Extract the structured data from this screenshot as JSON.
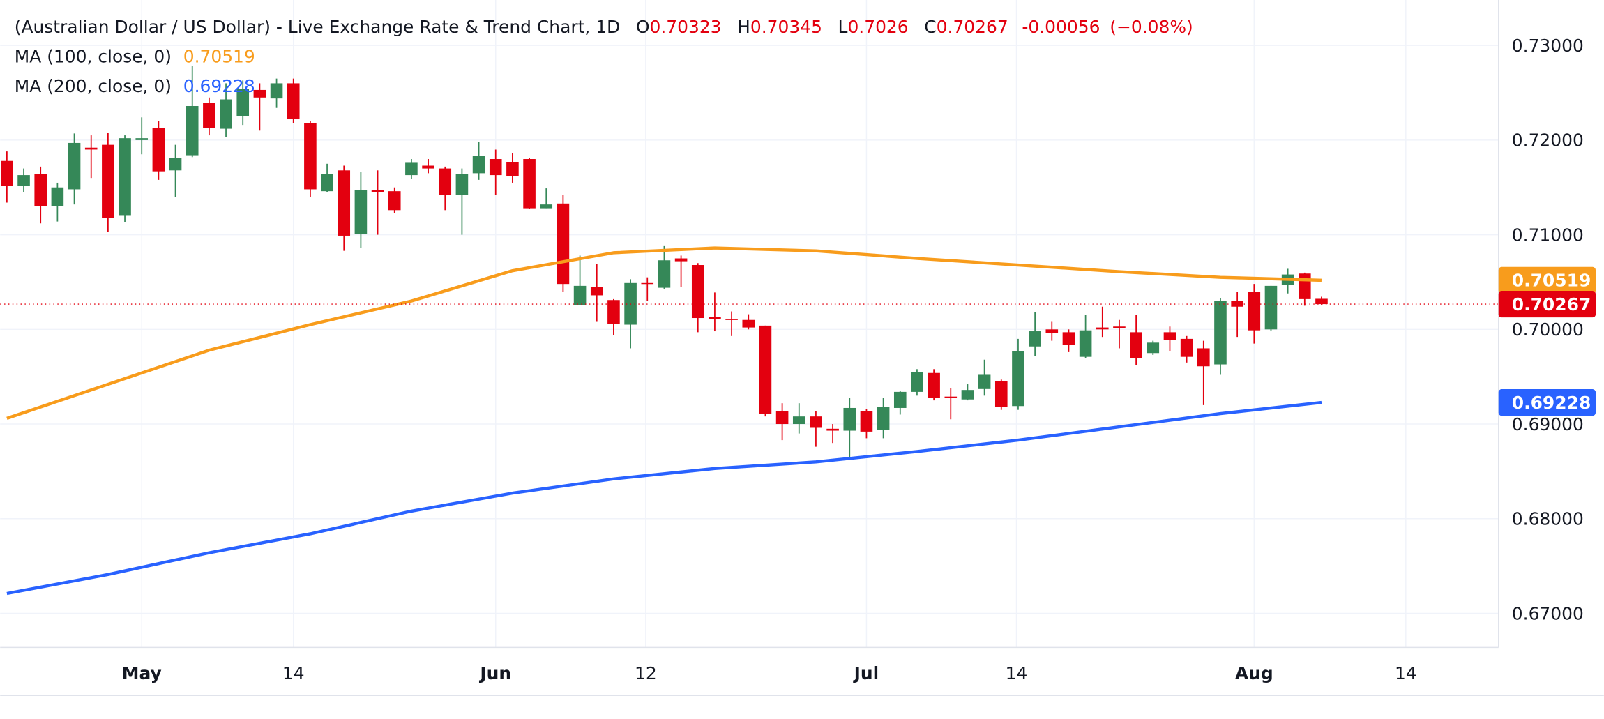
{
  "chart_data": {
    "type": "candlestick",
    "title": "(Australian Dollar / US Dollar) - Live Exchange Rate & Trend Chart, 1D",
    "ohlc_labels": [
      "O",
      "H",
      "L",
      "C"
    ],
    "change": -0.00056,
    "change_percent_label": "(−0.08%)",
    "up_color": "#358858",
    "down_color": "#e3000f",
    "open": [
      0.7178,
      0.7152,
      0.7164,
      0.713,
      0.7148,
      0.7192,
      0.7195,
      0.712,
      0.72,
      0.7213,
      0.7168,
      0.7184,
      0.7239,
      0.7212,
      0.7225,
      0.7253,
      0.7244,
      0.726,
      0.7218,
      0.7146,
      0.7168,
      0.7101,
      0.7147,
      0.7146,
      0.7163,
      0.7173,
      0.717,
      0.7142,
      0.7165,
      0.718,
      0.7177,
      0.718,
      0.7128,
      0.7133,
      0.7026,
      0.7045,
      0.7031,
      0.7005,
      0.7049,
      0.7044,
      0.7075,
      0.7068,
      0.7013,
      0.7011,
      0.701,
      0.7004,
      0.6914,
      0.69,
      0.6908,
      0.6895,
      0.6893,
      0.6914,
      0.6894,
      0.6917,
      0.6934,
      0.6954,
      0.6929,
      0.6926,
      0.6937,
      0.6945,
      0.6919,
      0.6982,
      0.7,
      0.6997,
      0.6971,
      0.7002,
      0.7003,
      0.6997,
      0.6975,
      0.6997,
      0.699,
      0.698,
      0.6963,
      0.703,
      0.704,
      0.7,
      0.7047,
      0.7059,
      0.70323
    ],
    "high": [
      0.7188,
      0.717,
      0.7172,
      0.7155,
      0.7207,
      0.7205,
      0.7208,
      0.7205,
      0.7224,
      0.722,
      0.7195,
      0.7278,
      0.7245,
      0.726,
      0.7263,
      0.726,
      0.7265,
      0.7265,
      0.722,
      0.7175,
      0.7173,
      0.7166,
      0.7168,
      0.715,
      0.718,
      0.718,
      0.7172,
      0.717,
      0.7198,
      0.719,
      0.7186,
      0.7181,
      0.7149,
      0.7142,
      0.7078,
      0.7069,
      0.7032,
      0.7053,
      0.7055,
      0.7088,
      0.7078,
      0.707,
      0.7039,
      0.7019,
      0.7016,
      0.7004,
      0.6922,
      0.6922,
      0.6914,
      0.69,
      0.6928,
      0.6916,
      0.6928,
      0.6935,
      0.6958,
      0.6958,
      0.6938,
      0.6942,
      0.6968,
      0.6947,
      0.699,
      0.7018,
      0.7008,
      0.7,
      0.7015,
      0.7024,
      0.701,
      0.7015,
      0.6988,
      0.7003,
      0.6993,
      0.6988,
      0.7033,
      0.704,
      0.7048,
      0.7046,
      0.7064,
      0.706,
      0.70345
    ],
    "low": [
      0.7134,
      0.7145,
      0.7112,
      0.7114,
      0.7132,
      0.716,
      0.7103,
      0.7113,
      0.7185,
      0.7158,
      0.714,
      0.7182,
      0.7205,
      0.7203,
      0.7216,
      0.721,
      0.7234,
      0.7218,
      0.714,
      0.7145,
      0.7083,
      0.7086,
      0.71,
      0.7123,
      0.7159,
      0.7165,
      0.7126,
      0.71,
      0.7158,
      0.7142,
      0.7155,
      0.7127,
      0.7128,
      0.704,
      0.7026,
      0.7008,
      0.6994,
      0.698,
      0.703,
      0.7043,
      0.7045,
      0.6997,
      0.6998,
      0.6993,
      0.7,
      0.6908,
      0.6883,
      0.689,
      0.6876,
      0.688,
      0.6865,
      0.6885,
      0.6885,
      0.691,
      0.693,
      0.6925,
      0.6905,
      0.6925,
      0.693,
      0.6915,
      0.6915,
      0.6972,
      0.6988,
      0.6976,
      0.697,
      0.6992,
      0.698,
      0.6962,
      0.6973,
      0.6977,
      0.6965,
      0.692,
      0.6952,
      0.6992,
      0.6985,
      0.6998,
      0.7038,
      0.7025,
      0.7026
    ],
    "close": [
      0.7152,
      0.7163,
      0.713,
      0.715,
      0.7197,
      0.719,
      0.7118,
      0.7202,
      0.7202,
      0.7167,
      0.7181,
      0.7236,
      0.7213,
      0.7243,
      0.7254,
      0.7245,
      0.726,
      0.7222,
      0.7148,
      0.7164,
      0.7099,
      0.7147,
      0.7145,
      0.7126,
      0.7176,
      0.717,
      0.7142,
      0.7164,
      0.7183,
      0.7163,
      0.7162,
      0.7128,
      0.7132,
      0.7048,
      0.7046,
      0.7036,
      0.7006,
      0.7049,
      0.7048,
      0.7073,
      0.7072,
      0.7012,
      0.7011,
      0.701,
      0.7002,
      0.6911,
      0.69,
      0.6908,
      0.6896,
      0.6893,
      0.6917,
      0.6892,
      0.6918,
      0.6934,
      0.6955,
      0.6928,
      0.6928,
      0.6936,
      0.6952,
      0.6918,
      0.6977,
      0.6998,
      0.6996,
      0.6984,
      0.6999,
      0.7,
      0.7001,
      0.697,
      0.6986,
      0.6989,
      0.6971,
      0.6961,
      0.703,
      0.7024,
      0.6999,
      0.7046,
      0.7058,
      0.7032,
      0.70267
    ],
    "series": [
      {
        "name": "MA (100, close, 0)",
        "color": "#f89c1c",
        "x": [
          0,
          6,
          12,
          18,
          24,
          30,
          36,
          42,
          48,
          54,
          60,
          66,
          72,
          78
        ],
        "values": [
          0.6906,
          0.6942,
          0.6978,
          0.7005,
          0.703,
          0.7062,
          0.7081,
          0.7086,
          0.7083,
          0.7075,
          0.7068,
          0.7061,
          0.7055,
          0.70519
        ]
      },
      {
        "name": "MA (200, close, 0)",
        "color": "#2962ff",
        "x": [
          0,
          6,
          12,
          18,
          24,
          30,
          36,
          42,
          48,
          54,
          60,
          66,
          72,
          78
        ],
        "values": [
          0.6721,
          0.6741,
          0.6764,
          0.6784,
          0.6808,
          0.6827,
          0.6842,
          0.6853,
          0.686,
          0.6871,
          0.6883,
          0.6897,
          0.6911,
          0.69228
        ]
      }
    ],
    "xlim": [
      -0.4,
      88.5
    ],
    "xticks": [
      {
        "value": 8.0,
        "label": "May"
      },
      {
        "value": 17.0,
        "label": "14"
      },
      {
        "value": 29.0,
        "label": "Jun"
      },
      {
        "value": 37.9,
        "label": "12"
      },
      {
        "value": 51.0,
        "label": "Jul"
      },
      {
        "value": 59.9,
        "label": "14"
      },
      {
        "value": 74.0,
        "label": "Aug"
      },
      {
        "value": 83.0,
        "label": "14"
      }
    ],
    "ylim": [
      0.6664,
      0.7348
    ],
    "yticks": [
      {
        "value": 0.67,
        "label": "0.67000"
      },
      {
        "value": 0.68,
        "label": "0.68000"
      },
      {
        "value": 0.69,
        "label": "0.69000"
      },
      {
        "value": 0.7,
        "label": "0.70000"
      },
      {
        "value": 0.71,
        "label": "0.71000"
      },
      {
        "value": 0.72,
        "label": "0.72000"
      },
      {
        "value": 0.73,
        "label": "0.73000"
      }
    ],
    "grid": true
  }
}
